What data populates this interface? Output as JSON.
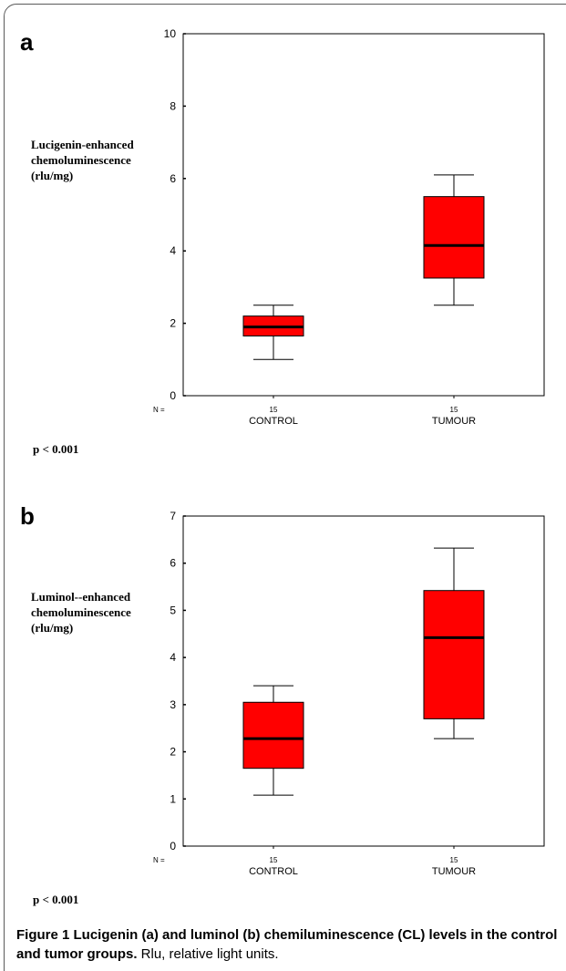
{
  "caption": {
    "bold": "Figure 1 Lucigenin (a) and luminol (b) chemiluminescence (CL) levels in the control and tumor groups.",
    "normal": " Rlu, relative light units."
  },
  "colors": {
    "box_fill": "#ff0000",
    "box_stroke": "#000000",
    "frame": "#5a5a5a"
  },
  "chart_data": [
    {
      "type": "box",
      "panel_label": "a",
      "ylabel_lines": [
        "Lucigenin-enhanced",
        "chemoluminescence",
        "(rlu/mg)"
      ],
      "ylim": [
        0,
        10
      ],
      "yticks": [
        0,
        2,
        4,
        6,
        8,
        10
      ],
      "n_label": "N =",
      "categories": [
        "CONTROL",
        "TUMOUR"
      ],
      "n_values": [
        "15",
        "15"
      ],
      "boxes": [
        {
          "category": "CONTROL",
          "min": 1.0,
          "q1": 1.65,
          "median": 1.9,
          "q3": 2.2,
          "max": 2.5
        },
        {
          "category": "TUMOUR",
          "min": 2.5,
          "q1": 3.25,
          "median": 4.15,
          "q3": 5.5,
          "max": 6.1
        }
      ],
      "annotation": "p < 0.001",
      "grid": false
    },
    {
      "type": "box",
      "panel_label": "b",
      "ylabel_lines": [
        "Luminol--enhanced",
        "chemoluminescence",
        "(rlu/mg)"
      ],
      "ylim": [
        0,
        7
      ],
      "yticks": [
        0,
        1,
        2,
        3,
        4,
        5,
        6,
        7
      ],
      "n_label": "N =",
      "categories": [
        "CONTROL",
        "TUMOUR"
      ],
      "n_values": [
        "15",
        "15"
      ],
      "boxes": [
        {
          "category": "CONTROL",
          "min": 1.08,
          "q1": 1.65,
          "median": 2.28,
          "q3": 3.05,
          "max": 3.4
        },
        {
          "category": "TUMOUR",
          "min": 2.28,
          "q1": 2.7,
          "median": 4.42,
          "q3": 5.42,
          "max": 6.32
        }
      ],
      "annotation": "p < 0.001",
      "grid": false
    }
  ]
}
